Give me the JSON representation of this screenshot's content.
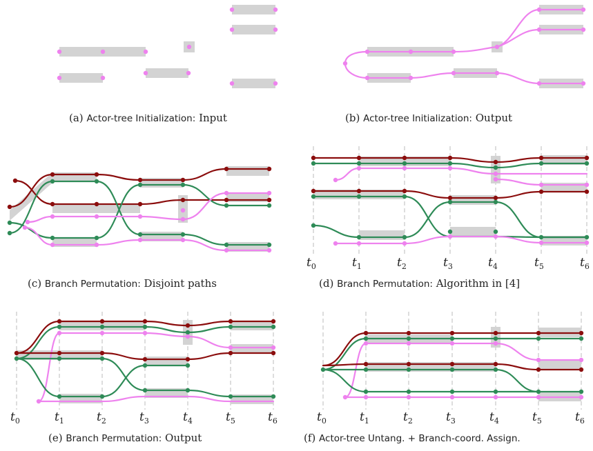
{
  "colors": {
    "dark_red": "#8b0d0d",
    "green": "#2e8b57",
    "pink": "#ee82ee",
    "bar": "#d3d3d3",
    "guide": "#bbbbbb"
  },
  "panels": [
    {
      "id": "a",
      "caption": {
        "label": "(a)",
        "sans": "Actor-tree Initialization:",
        "rest": "Input"
      }
    },
    {
      "id": "b",
      "caption": {
        "label": "(b)",
        "sans": "Actor-tree Initialization:",
        "rest": "Output"
      }
    },
    {
      "id": "c",
      "caption": {
        "label": "(c)",
        "sans": "Branch Permutation:",
        "rest": "Disjoint paths"
      }
    },
    {
      "id": "d",
      "caption": {
        "label": "(d)",
        "sans": "Branch Permutation:",
        "rest": "Algorithm in [4]"
      },
      "time_ticks": [
        {
          "t": "t",
          "sub": "0"
        },
        {
          "t": "t",
          "sub": "1"
        },
        {
          "t": "t",
          "sub": "2"
        },
        {
          "t": "t",
          "sub": "3"
        },
        {
          "t": "t",
          "sub": "4"
        },
        {
          "t": "t",
          "sub": "5"
        },
        {
          "t": "t",
          "sub": "6"
        }
      ]
    },
    {
      "id": "e",
      "caption": {
        "label": "(e)",
        "sans": "Branch Permutation:",
        "rest": "Output"
      },
      "time_ticks": [
        {
          "t": "t",
          "sub": "0"
        },
        {
          "t": "t",
          "sub": "1"
        },
        {
          "t": "t",
          "sub": "2"
        },
        {
          "t": "t",
          "sub": "3"
        },
        {
          "t": "t",
          "sub": "4"
        },
        {
          "t": "t",
          "sub": "5"
        },
        {
          "t": "t",
          "sub": "6"
        }
      ]
    },
    {
      "id": "f",
      "caption": {
        "label": "(f)",
        "sans": "Actor-tree Untang. + Branch-coord. Assign.",
        "rest": ""
      },
      "time_ticks": [
        {
          "t": "t",
          "sub": "0"
        },
        {
          "t": "t",
          "sub": "1"
        },
        {
          "t": "t",
          "sub": "2"
        },
        {
          "t": "t",
          "sub": "3"
        },
        {
          "t": "t",
          "sub": "4"
        },
        {
          "t": "t",
          "sub": "5"
        },
        {
          "t": "t",
          "sub": "6"
        }
      ]
    }
  ]
}
